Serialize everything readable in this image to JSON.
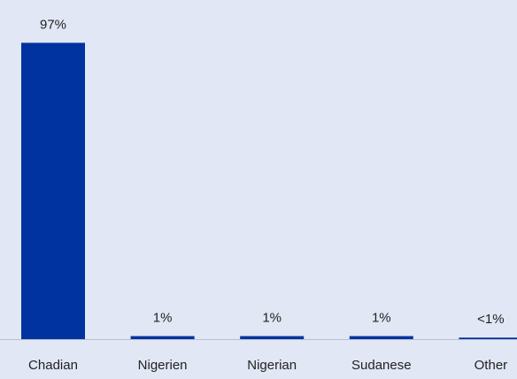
{
  "chart_data": {
    "type": "bar",
    "categories": [
      "Chadian",
      "Nigerien",
      "Nigerian",
      "Sudanese",
      "Other"
    ],
    "values": [
      97,
      1,
      1,
      1,
      0.5
    ],
    "value_labels": [
      "97%",
      "1%",
      "1%",
      "1%",
      "<1%"
    ],
    "color": "#0033a0",
    "ylim": [
      0,
      100
    ]
  }
}
